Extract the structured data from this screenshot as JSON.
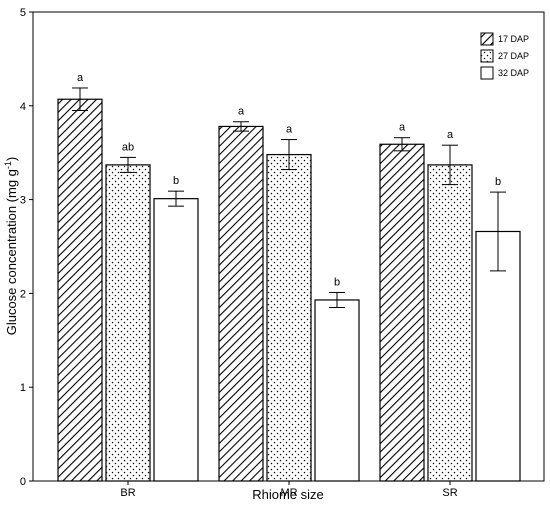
{
  "chart_data": {
    "type": "bar",
    "xlabel": "Rhiome size",
    "ylabel": "Glucose concentration (mg g",
    "ylabel_sup": "-1",
    "ylabel_close": ")",
    "ylim": [
      0,
      5
    ],
    "yticks": [
      "0",
      "1",
      "2",
      "3",
      "4",
      "5"
    ],
    "categories": [
      "BR",
      "MR",
      "SR"
    ],
    "legend_position": "top-right",
    "series": [
      {
        "name": "17 DAP",
        "pattern": "diagonal-hatch",
        "values": [
          4.07,
          3.78,
          3.59
        ],
        "errors": [
          0.12,
          0.05,
          0.07
        ],
        "letters": [
          "a",
          "a",
          "a"
        ]
      },
      {
        "name": "27 DAP",
        "pattern": "dots",
        "values": [
          3.37,
          3.48,
          3.37
        ],
        "errors": [
          0.08,
          0.16,
          0.21
        ],
        "letters": [
          "ab",
          "a",
          "a"
        ]
      },
      {
        "name": "32 DAP",
        "pattern": "open",
        "values": [
          3.01,
          1.93,
          2.66
        ],
        "errors": [
          0.08,
          0.08,
          0.42
        ],
        "letters": [
          "b",
          "b",
          "b"
        ]
      }
    ]
  }
}
